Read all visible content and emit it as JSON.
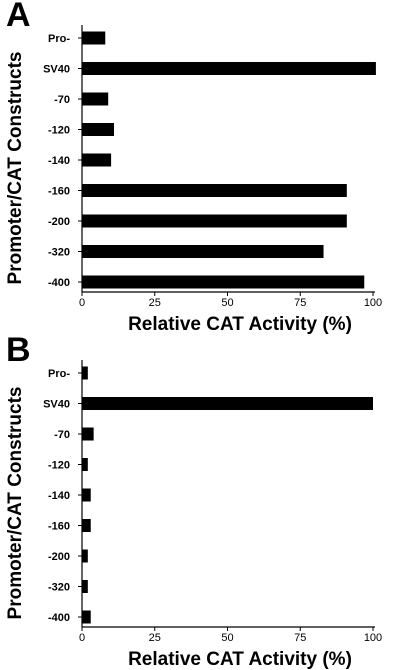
{
  "chart_data": [
    {
      "panel_label": "A",
      "type": "bar",
      "orientation": "horizontal",
      "categories": [
        "Pro-",
        "SV40",
        "-70",
        "-120",
        "-140",
        "-160",
        "-200",
        "-320",
        "-400"
      ],
      "values": [
        8,
        101,
        9,
        11,
        10,
        91,
        91,
        83,
        97
      ],
      "xlabel": "Relative CAT Activity (%)",
      "ylabel": "Promoter/CAT Constructs",
      "xlim": [
        0,
        100
      ],
      "xticks": [
        "0",
        "25",
        "50",
        "75",
        "100"
      ],
      "bar_color": "#000000",
      "grid": false
    },
    {
      "panel_label": "B",
      "type": "bar",
      "orientation": "horizontal",
      "categories": [
        "Pro-",
        "SV40",
        "-70",
        "-120",
        "-140",
        "-160",
        "-200",
        "-320",
        "-400"
      ],
      "values": [
        2,
        100,
        4,
        2,
        3,
        3,
        2,
        2,
        3
      ],
      "xlabel": "Relative CAT Activity (%)",
      "ylabel": "Promoter/CAT Constructs",
      "xlim": [
        0,
        100
      ],
      "xticks": [
        "0",
        "25",
        "50",
        "75",
        "100"
      ],
      "bar_color": "#000000",
      "grid": false
    }
  ]
}
